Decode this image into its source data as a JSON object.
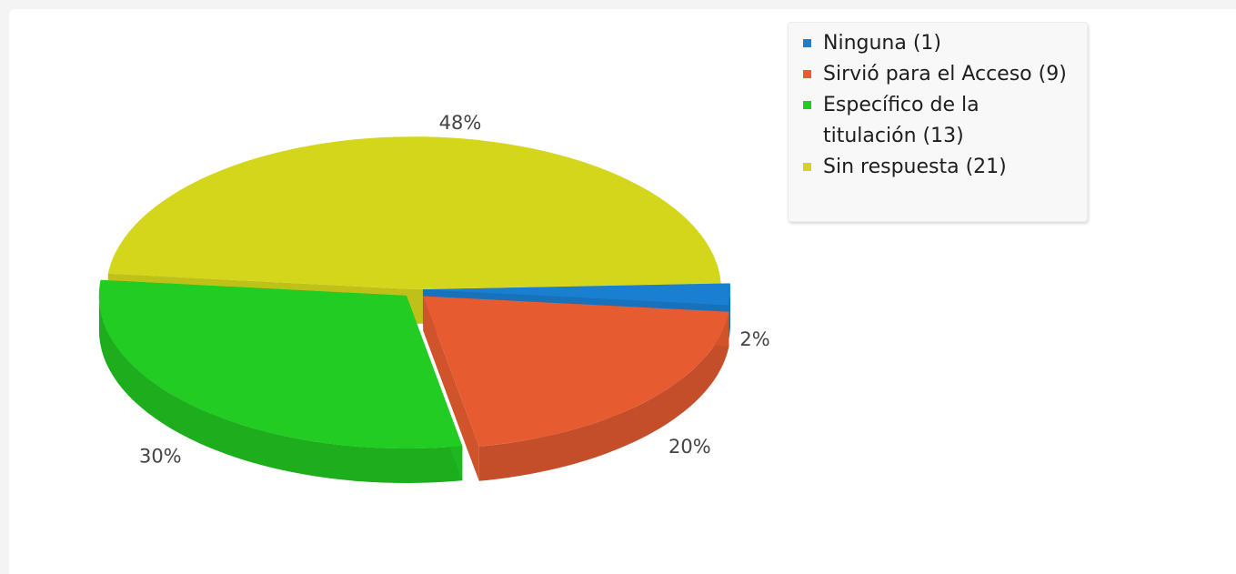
{
  "chart_data": {
    "type": "pie",
    "slices": [
      {
        "label": "Ninguna (1)",
        "value": 1,
        "percent_label": "2%",
        "color": "#1a7fd0"
      },
      {
        "label": "Sirvió para el Acceso (9)",
        "value": 9,
        "percent_label": "20%",
        "color": "#e65c30"
      },
      {
        "label": "Específico de la titulación (13)",
        "value": 13,
        "percent_label": "30%",
        "color": "#22cc22"
      },
      {
        "label": "Sin respuesta (21)",
        "value": 21,
        "percent_label": "48%",
        "color": "#d4d61c"
      }
    ],
    "legend_position": "top-right",
    "style": "3d-exploded"
  }
}
